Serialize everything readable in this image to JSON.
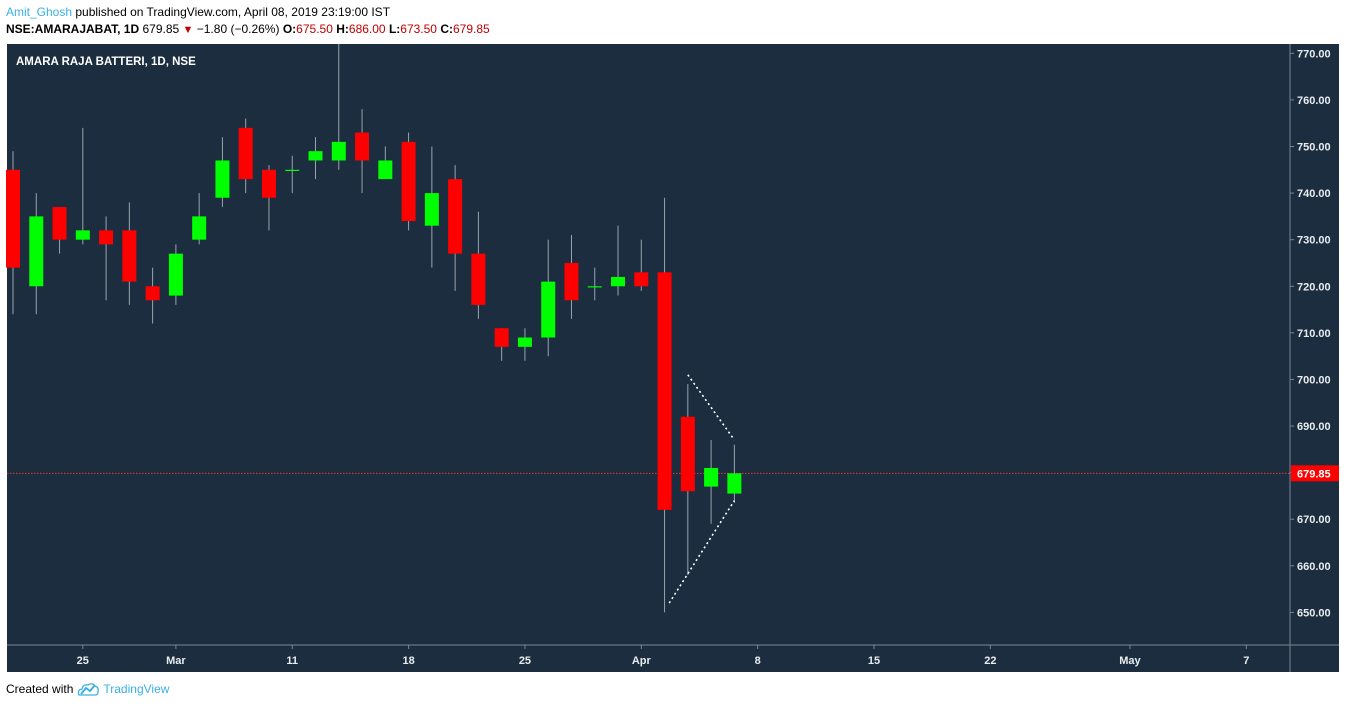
{
  "header": {
    "author": "Amit_Ghosh",
    "published_text": " published on TradingView.com, April 08, 2019 23:19:00 IST",
    "symbol_line": "NSE:AMARAJABAT, 1D",
    "last": "679.85",
    "change": "−1.80 (−0.26%)",
    "o_label": "O:",
    "o_value": "675.50",
    "h_label": "H:",
    "h_value": "686.00",
    "l_label": "L:",
    "l_value": "673.50",
    "c_label": "C:",
    "c_value": "679.85"
  },
  "footer": {
    "created_with": "Created with",
    "brand": "TradingView"
  },
  "chart_data": {
    "type": "candlestick",
    "title": "AMARA RAJA BATTERI, 1D, NSE",
    "background": "#1b2d3e",
    "up_color": "#00ff00",
    "down_color": "#ff0000",
    "ylim": [
      643,
      772
    ],
    "y_ticks": [
      "650.00",
      "660.00",
      "670.00",
      "680.00",
      "690.00",
      "700.00",
      "710.00",
      "720.00",
      "730.00",
      "740.00",
      "750.00",
      "760.00",
      "770.00"
    ],
    "y_tick_values": [
      650,
      660,
      670,
      680,
      690,
      700,
      710,
      720,
      730,
      740,
      750,
      760,
      770
    ],
    "x_ticks": [
      "25",
      "Mar",
      "11",
      "18",
      "25",
      "Apr",
      "8",
      "15",
      "22",
      "May",
      "7"
    ],
    "x_tick_index": [
      3,
      7,
      12,
      17,
      22,
      27,
      32,
      37,
      42,
      48,
      53
    ],
    "last_price_label": "679.85",
    "last_price": 679.85,
    "candles": [
      {
        "i": 0,
        "o": 745,
        "h": 749,
        "l": 714,
        "c": 724
      },
      {
        "i": 1,
        "o": 720,
        "h": 740,
        "l": 714,
        "c": 735
      },
      {
        "i": 2,
        "o": 737,
        "h": 737,
        "l": 727,
        "c": 730
      },
      {
        "i": 3,
        "o": 730,
        "h": 754,
        "l": 729,
        "c": 732
      },
      {
        "i": 4,
        "o": 732,
        "h": 735,
        "l": 717,
        "c": 729
      },
      {
        "i": 5,
        "o": 732,
        "h": 738,
        "l": 716,
        "c": 721
      },
      {
        "i": 6,
        "o": 720,
        "h": 724,
        "l": 712,
        "c": 717
      },
      {
        "i": 7,
        "o": 718,
        "h": 729,
        "l": 716,
        "c": 727
      },
      {
        "i": 8,
        "o": 730,
        "h": 740,
        "l": 729,
        "c": 735
      },
      {
        "i": 9,
        "o": 739,
        "h": 752,
        "l": 737,
        "c": 747
      },
      {
        "i": 10,
        "o": 754,
        "h": 756,
        "l": 740,
        "c": 743
      },
      {
        "i": 11,
        "o": 745,
        "h": 746,
        "l": 732,
        "c": 739
      },
      {
        "i": 12,
        "o": 745,
        "h": 748,
        "l": 740,
        "c": 745
      },
      {
        "i": 13,
        "o": 747,
        "h": 752,
        "l": 743,
        "c": 749
      },
      {
        "i": 14,
        "o": 747,
        "h": 772,
        "l": 745,
        "c": 751
      },
      {
        "i": 15,
        "o": 753,
        "h": 758,
        "l": 740,
        "c": 747
      },
      {
        "i": 16,
        "o": 743,
        "h": 750,
        "l": 743,
        "c": 747
      },
      {
        "i": 17,
        "o": 751,
        "h": 753,
        "l": 732,
        "c": 734
      },
      {
        "i": 18,
        "o": 733,
        "h": 750,
        "l": 724,
        "c": 740
      },
      {
        "i": 19,
        "o": 743,
        "h": 746,
        "l": 719,
        "c": 727
      },
      {
        "i": 20,
        "o": 727,
        "h": 736,
        "l": 713,
        "c": 716
      },
      {
        "i": 21,
        "o": 711,
        "h": 711,
        "l": 704,
        "c": 707
      },
      {
        "i": 22,
        "o": 707,
        "h": 711,
        "l": 704,
        "c": 709
      },
      {
        "i": 23,
        "o": 709,
        "h": 730,
        "l": 705,
        "c": 721
      },
      {
        "i": 24,
        "o": 725,
        "h": 731,
        "l": 713,
        "c": 717
      },
      {
        "i": 25,
        "o": 720,
        "h": 724,
        "l": 717,
        "c": 720
      },
      {
        "i": 26,
        "o": 720,
        "h": 733,
        "l": 718,
        "c": 722
      },
      {
        "i": 27,
        "o": 723,
        "h": 730,
        "l": 719,
        "c": 720
      },
      {
        "i": 28,
        "o": 723,
        "h": 739,
        "l": 650,
        "c": 672
      },
      {
        "i": 29,
        "o": 692,
        "h": 699,
        "l": 658,
        "c": 676
      },
      {
        "i": 30,
        "o": 677,
        "h": 687,
        "l": 669,
        "c": 681
      },
      {
        "i": 31,
        "o": 675.5,
        "h": 686,
        "l": 673.5,
        "c": 679.85
      }
    ],
    "pattern_lines": [
      {
        "from": [
          28.2,
          652
        ],
        "to": [
          31,
          674
        ]
      },
      {
        "from": [
          29,
          701
        ],
        "to": [
          31,
          687
        ]
      }
    ]
  }
}
